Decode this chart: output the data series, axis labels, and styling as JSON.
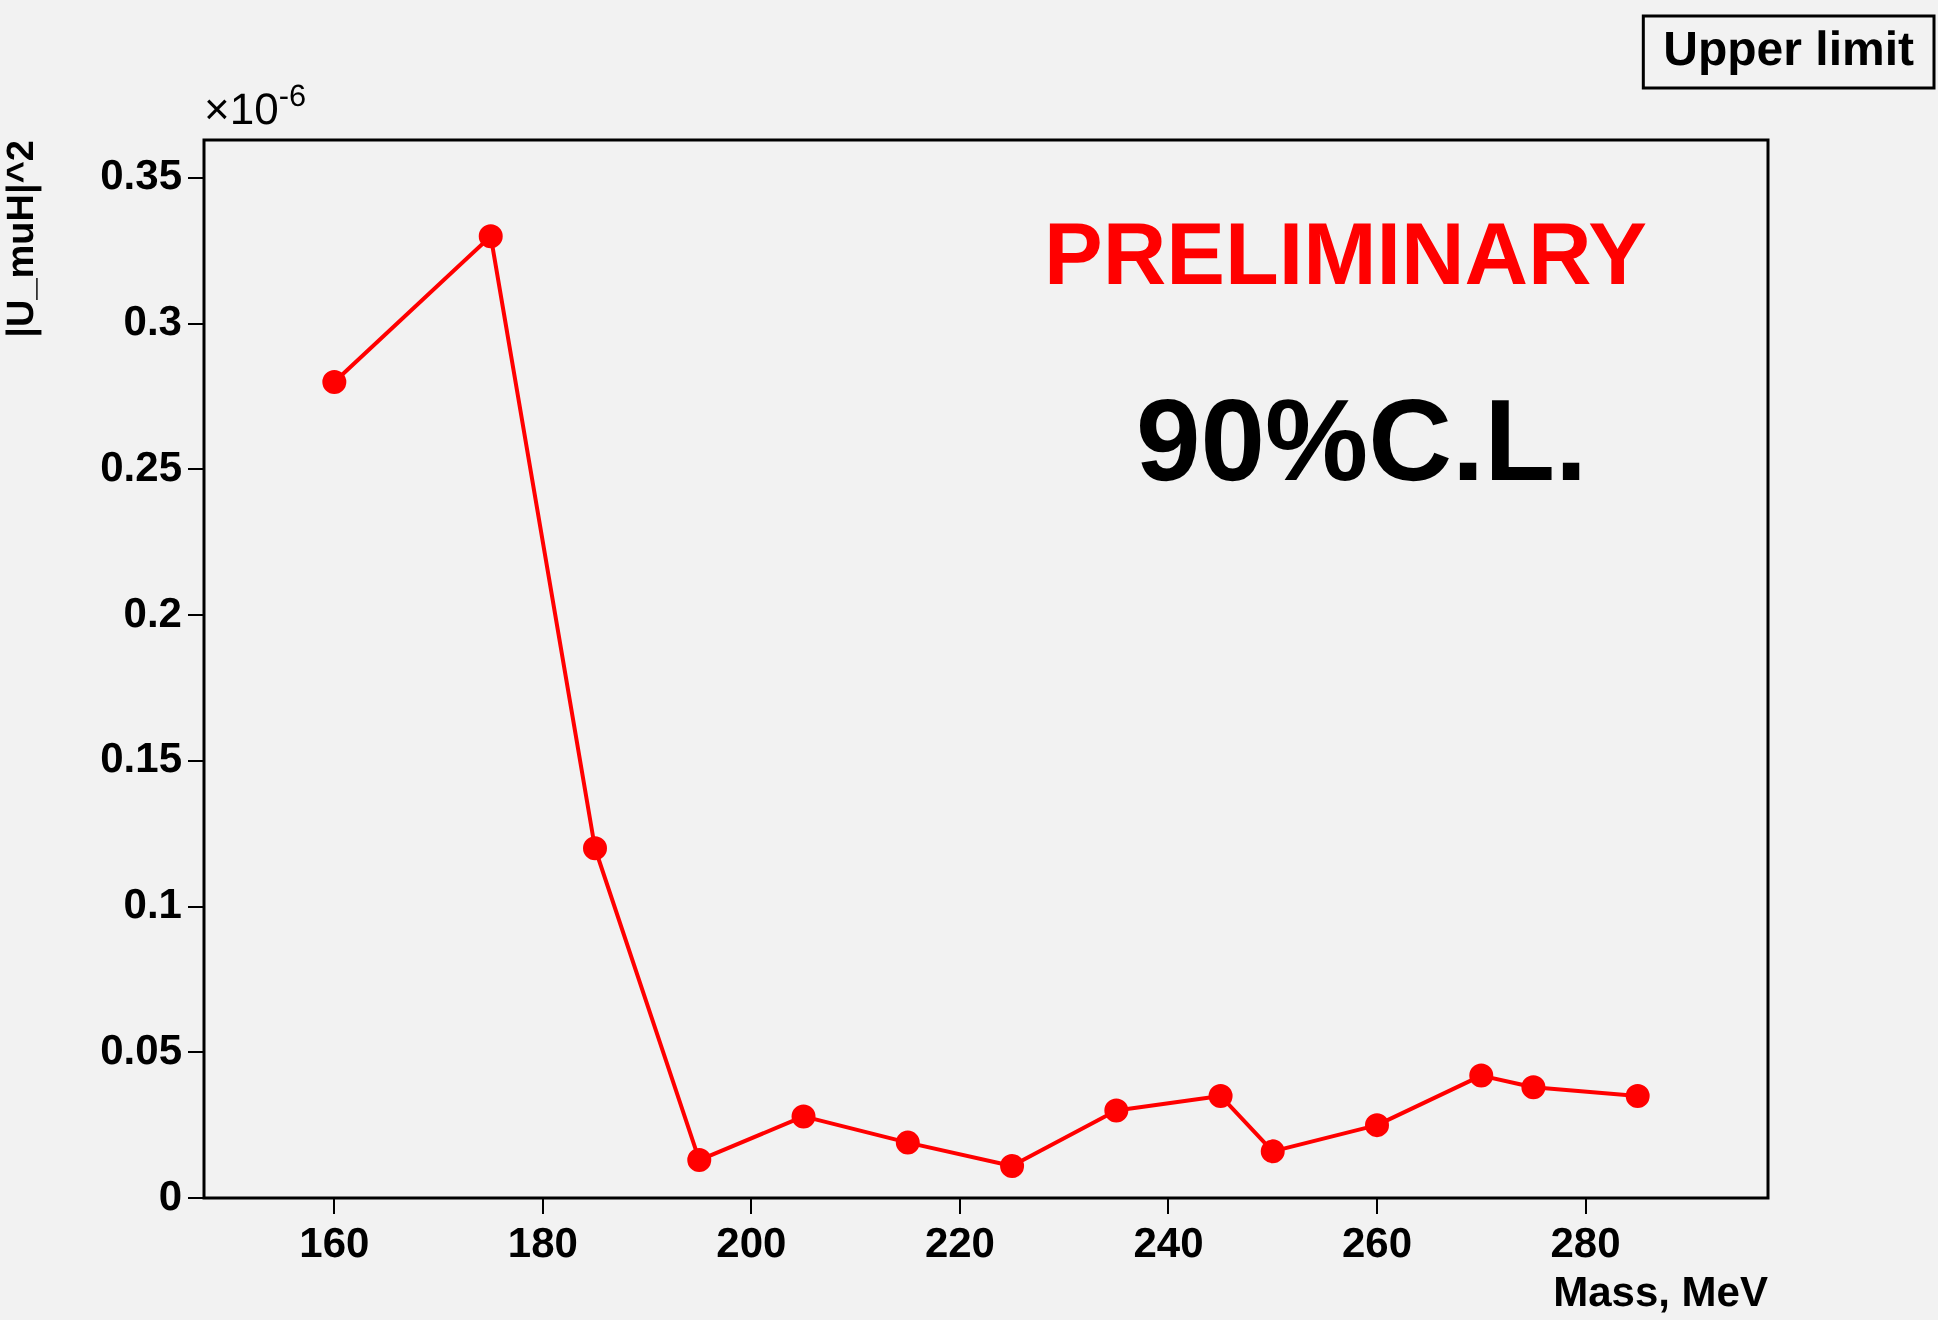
{
  "chart_data": {
    "type": "line",
    "title": "Upper limit",
    "xlabel": "Mass, MeV",
    "ylabel": "|U_muH|^2",
    "annotations": [
      "×10$^{-6}$",
      "PRELIMINARY",
      "90%C.L."
    ],
    "x": [
      160,
      175,
      185,
      195,
      205,
      215,
      225,
      235,
      245,
      250,
      260,
      270,
      275,
      285
    ],
    "series": [
      {
        "color": "#ff0000",
        "values": [
          0.28,
          0.33,
          0.12,
          0.013,
          0.028,
          0.019,
          0.011,
          0.03,
          0.035,
          0.016,
          0.025,
          0.042,
          0.038,
          0.035
        ]
      }
    ],
    "xlim": [
      147.5,
      297.5
    ],
    "xticks": [
      160,
      180,
      200,
      220,
      240,
      260,
      280
    ],
    "ylim": [
      0,
      0.363
    ],
    "yticks": [
      0,
      0.05,
      0.1,
      0.15,
      0.2,
      0.25,
      0.3,
      0.35
    ],
    "grid": false,
    "legend": false,
    "marker": "circle",
    "line_style": "solid"
  }
}
